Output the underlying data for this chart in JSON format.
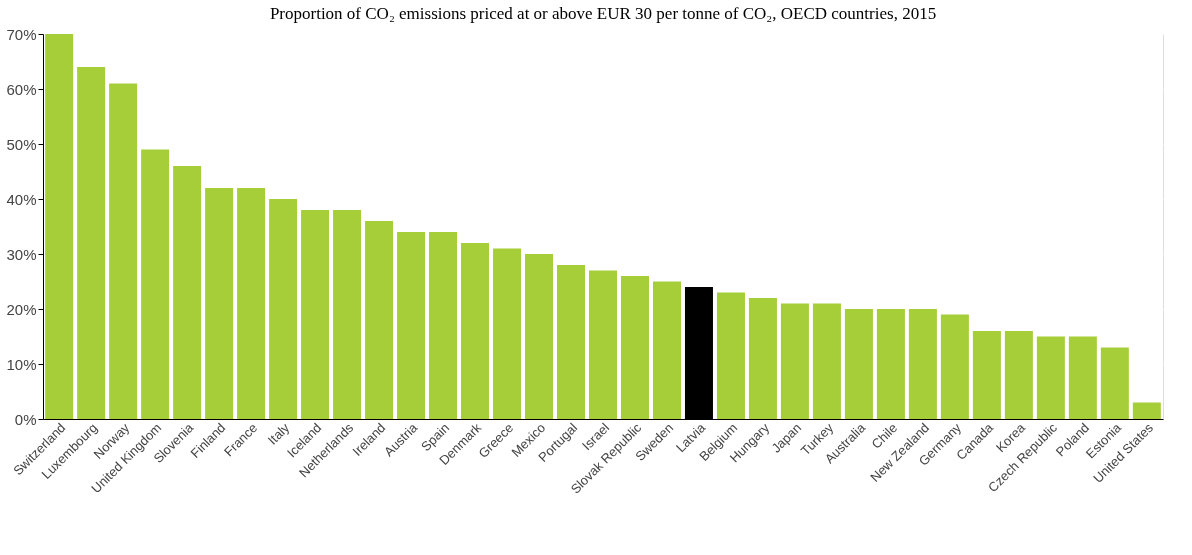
{
  "chart_data": {
    "type": "bar",
    "title": "Proportion of CO₂ emissions priced at or above EUR 30 per tonne of CO₂, OECD countries, 2015",
    "categories": [
      "Switzerland",
      "Luxembourg",
      "Norway",
      "United Kingdom",
      "Slovenia",
      "Finland",
      "France",
      "Italy",
      "Iceland",
      "Netherlands",
      "Ireland",
      "Austria",
      "Spain",
      "Denmark",
      "Greece",
      "Mexico",
      "Portugal",
      "Israel",
      "Slovak Republic",
      "Sweden",
      "Latvia",
      "Belgium",
      "Hungary",
      "Japan",
      "Turkey",
      "Australia",
      "Chile",
      "New Zealand",
      "Germany",
      "Canada",
      "Korea",
      "Czech Republic",
      "Poland",
      "Estonia",
      "United States"
    ],
    "values": [
      70,
      64,
      61,
      49,
      46,
      42,
      42,
      40,
      38,
      38,
      36,
      34,
      34,
      32,
      31,
      30,
      28,
      27,
      26,
      25,
      24,
      23,
      22,
      21,
      21,
      20,
      20,
      20,
      19,
      16,
      16,
      15,
      15,
      13,
      3
    ],
    "colors": [
      "#a6ce39",
      "#a6ce39",
      "#a6ce39",
      "#a6ce39",
      "#a6ce39",
      "#a6ce39",
      "#a6ce39",
      "#a6ce39",
      "#a6ce39",
      "#a6ce39",
      "#a6ce39",
      "#a6ce39",
      "#a6ce39",
      "#a6ce39",
      "#a6ce39",
      "#a6ce39",
      "#a6ce39",
      "#a6ce39",
      "#a6ce39",
      "#a6ce39",
      "#000000",
      "#a6ce39",
      "#a6ce39",
      "#a6ce39",
      "#a6ce39",
      "#a6ce39",
      "#a6ce39",
      "#a6ce39",
      "#a6ce39",
      "#a6ce39",
      "#a6ce39",
      "#a6ce39",
      "#a6ce39",
      "#a6ce39",
      "#a6ce39"
    ],
    "ylim": [
      0,
      70
    ],
    "yticks": [
      {
        "value": 0,
        "label": "0%"
      },
      {
        "value": 10,
        "label": "10%"
      },
      {
        "value": 20,
        "label": "20%"
      },
      {
        "value": 30,
        "label": "30%"
      },
      {
        "value": 40,
        "label": "40%"
      },
      {
        "value": 50,
        "label": "50%"
      },
      {
        "value": 60,
        "label": "60%"
      },
      {
        "value": 70,
        "label": "70%"
      }
    ],
    "grid": true
  }
}
